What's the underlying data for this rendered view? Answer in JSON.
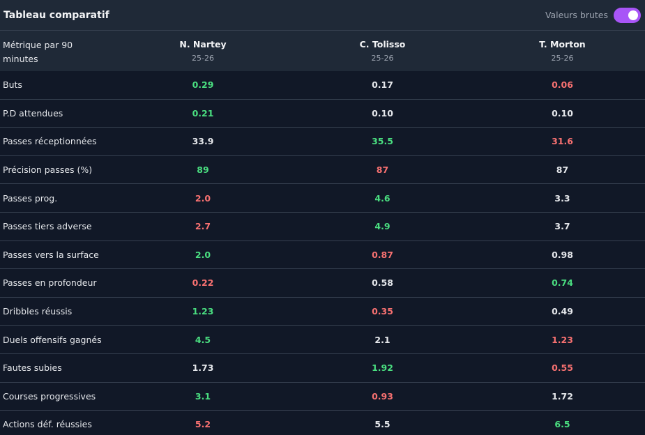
{
  "header": {
    "title": "Tableau comparatif",
    "toggle_label": "Valeurs brutes",
    "toggle_on": true
  },
  "table": {
    "metric_header": "Métrique par 90 minutes",
    "players": [
      {
        "name": "N. Nartey",
        "season": "25-26"
      },
      {
        "name": "C. Tolisso",
        "season": "25-26"
      },
      {
        "name": "T. Morton",
        "season": "25-26"
      }
    ],
    "rows": [
      {
        "label": "Buts",
        "values": [
          "0.29",
          "0.17",
          "0.06"
        ],
        "status": [
          "good",
          "neutral",
          "bad"
        ]
      },
      {
        "label": "P.D attendues",
        "values": [
          "0.21",
          "0.10",
          "0.10"
        ],
        "status": [
          "good",
          "neutral",
          "neutral"
        ]
      },
      {
        "label": "Passes réceptionnées",
        "values": [
          "33.9",
          "35.5",
          "31.6"
        ],
        "status": [
          "neutral",
          "good",
          "bad"
        ]
      },
      {
        "label": "Précision passes (%)",
        "values": [
          "89",
          "87",
          "87"
        ],
        "status": [
          "good",
          "bad",
          "neutral"
        ]
      },
      {
        "label": "Passes prog.",
        "values": [
          "2.0",
          "4.6",
          "3.3"
        ],
        "status": [
          "bad",
          "good",
          "neutral"
        ]
      },
      {
        "label": "Passes tiers adverse",
        "values": [
          "2.7",
          "4.9",
          "3.7"
        ],
        "status": [
          "bad",
          "good",
          "neutral"
        ]
      },
      {
        "label": "Passes vers la surface",
        "values": [
          "2.0",
          "0.87",
          "0.98"
        ],
        "status": [
          "good",
          "bad",
          "neutral"
        ]
      },
      {
        "label": "Passes en profondeur",
        "values": [
          "0.22",
          "0.58",
          "0.74"
        ],
        "status": [
          "bad",
          "neutral",
          "good"
        ]
      },
      {
        "label": "Dribbles réussis",
        "values": [
          "1.23",
          "0.35",
          "0.49"
        ],
        "status": [
          "good",
          "bad",
          "neutral"
        ]
      },
      {
        "label": "Duels offensifs gagnés",
        "values": [
          "4.5",
          "2.1",
          "1.23"
        ],
        "status": [
          "good",
          "neutral",
          "bad"
        ]
      },
      {
        "label": "Fautes subies",
        "values": [
          "1.73",
          "1.92",
          "0.55"
        ],
        "status": [
          "neutral",
          "good",
          "bad"
        ]
      },
      {
        "label": "Courses progressives",
        "values": [
          "3.1",
          "0.93",
          "1.72"
        ],
        "status": [
          "good",
          "bad",
          "neutral"
        ]
      },
      {
        "label": "Actions déf. réussies",
        "values": [
          "5.2",
          "5.5",
          "6.5"
        ],
        "status": [
          "bad",
          "neutral",
          "good"
        ]
      }
    ]
  },
  "colors": {
    "good": "#4ade80",
    "bad": "#f87171",
    "neutral": "#e5e7eb",
    "accent": "#a855f7"
  }
}
